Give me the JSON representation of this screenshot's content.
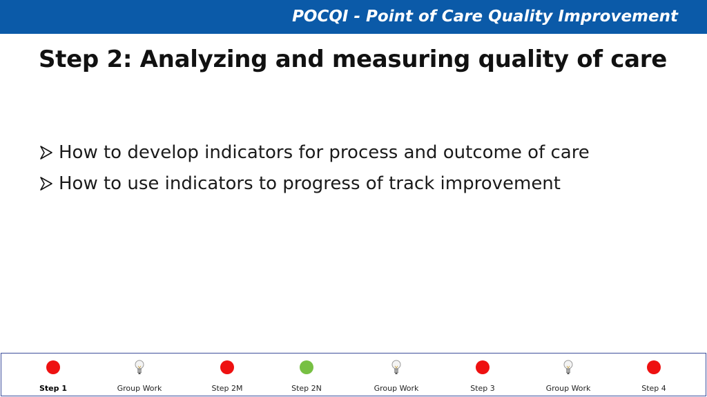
{
  "header": {
    "title": "POCQI - Point of Care Quality Improvement",
    "color": "#0b5aa8"
  },
  "slide": {
    "title": "Step 2: Analyzing and measuring quality of care",
    "bullets": [
      "How to develop indicators for process and outcome of care",
      "How to use indicators to progress of track improvement"
    ]
  },
  "nav": {
    "items": [
      {
        "label": "Step 1",
        "marker": "red-dot",
        "current": true
      },
      {
        "label": "Group Work",
        "marker": "lightbulb-icon"
      },
      {
        "label": "Step 2M",
        "marker": "red-dot"
      },
      {
        "label": "Step 2N",
        "marker": "green-dot"
      },
      {
        "label": "Group Work",
        "marker": "lightbulb-icon"
      },
      {
        "label": "Step 3",
        "marker": "red-dot"
      },
      {
        "label": "Group Work",
        "marker": "lightbulb-icon"
      },
      {
        "label": "Step 4",
        "marker": "red-dot"
      }
    ],
    "colors": {
      "red": "#ee1111",
      "green": "#77c043"
    }
  }
}
